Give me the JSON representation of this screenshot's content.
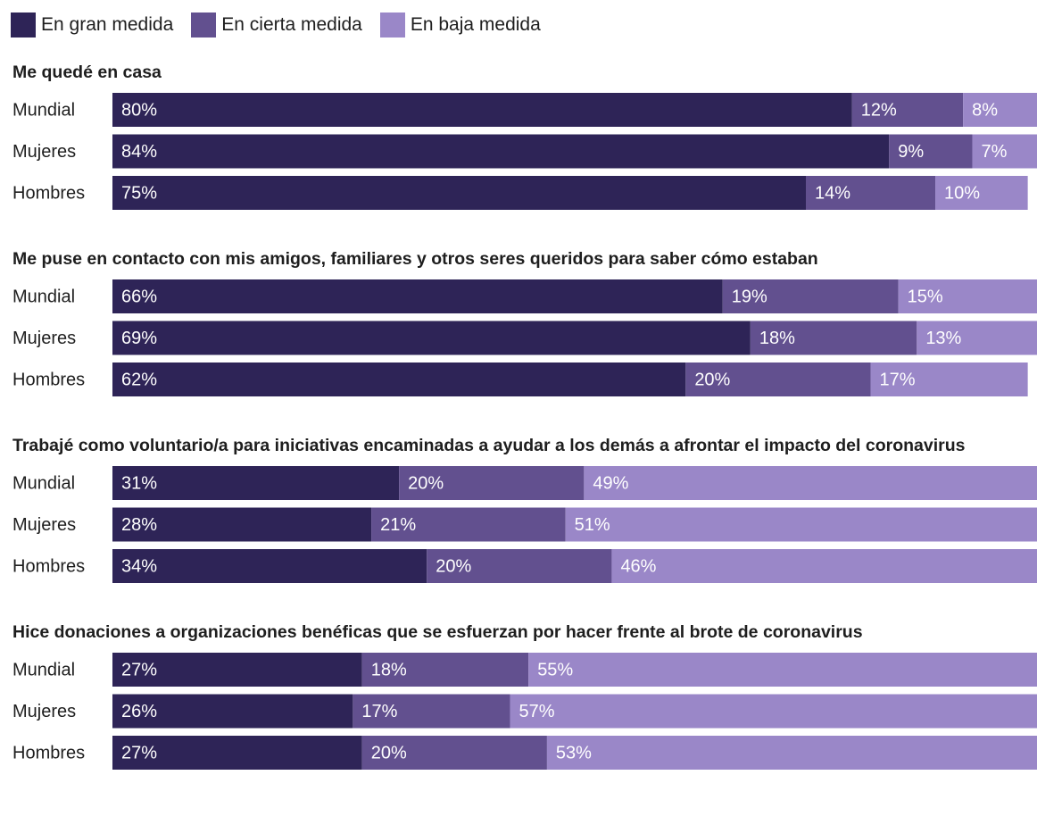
{
  "chart_data": [
    {
      "type": "stacked-bar",
      "title": "Me quedé en casa",
      "categories": [
        "Mundial",
        "Mujeres",
        "Hombres"
      ],
      "xlim": [
        0,
        100
      ],
      "series": [
        {
          "name": "En gran medida",
          "color": "#2e2457",
          "values": [
            80,
            84,
            75
          ],
          "value_labels": [
            "80%",
            "84%",
            "75%"
          ]
        },
        {
          "name": "En cierta medida",
          "color": "#62508f",
          "values": [
            12,
            9,
            14
          ],
          "value_labels": [
            "12%",
            "9%",
            "14%"
          ]
        },
        {
          "name": "En baja medida",
          "color": "#9a87c8",
          "values": [
            8,
            7,
            10
          ],
          "value_labels": [
            "8%",
            "7%",
            "10%"
          ]
        }
      ]
    },
    {
      "type": "stacked-bar",
      "title": "Me puse en contacto con mis amigos, familiares y otros seres queridos para saber cómo estaban",
      "categories": [
        "Mundial",
        "Mujeres",
        "Hombres"
      ],
      "xlim": [
        0,
        100
      ],
      "series": [
        {
          "name": "En gran medida",
          "color": "#2e2457",
          "values": [
            66,
            69,
            62
          ],
          "value_labels": [
            "66%",
            "69%",
            "62%"
          ]
        },
        {
          "name": "En cierta medida",
          "color": "#62508f",
          "values": [
            19,
            18,
            20
          ],
          "value_labels": [
            "19%",
            "18%",
            "20%"
          ]
        },
        {
          "name": "En baja medida",
          "color": "#9a87c8",
          "values": [
            15,
            13,
            17
          ],
          "value_labels": [
            "15%",
            "13%",
            "17%"
          ]
        }
      ]
    },
    {
      "type": "stacked-bar",
      "title": "Trabajé como voluntario/a para iniciativas encaminadas a ayudar a los demás a afrontar el impacto del coronavirus",
      "categories": [
        "Mundial",
        "Mujeres",
        "Hombres"
      ],
      "xlim": [
        0,
        100
      ],
      "series": [
        {
          "name": "En gran medida",
          "color": "#2e2457",
          "values": [
            31,
            28,
            34
          ],
          "value_labels": [
            "31%",
            "28%",
            "34%"
          ]
        },
        {
          "name": "En cierta medida",
          "color": "#62508f",
          "values": [
            20,
            21,
            20
          ],
          "value_labels": [
            "20%",
            "21%",
            "20%"
          ]
        },
        {
          "name": "En baja medida",
          "color": "#9a87c8",
          "values": [
            49,
            51,
            46
          ],
          "value_labels": [
            "49%",
            "51%",
            "46%"
          ]
        }
      ]
    },
    {
      "type": "stacked-bar",
      "title": "Hice donaciones a organizaciones benéficas que se esfuerzan por hacer frente al brote de coronavirus",
      "categories": [
        "Mundial",
        "Mujeres",
        "Hombres"
      ],
      "xlim": [
        0,
        100
      ],
      "series": [
        {
          "name": "En gran medida",
          "color": "#2e2457",
          "values": [
            27,
            26,
            27
          ],
          "value_labels": [
            "27%",
            "26%",
            "27%"
          ]
        },
        {
          "name": "En cierta medida",
          "color": "#62508f",
          "values": [
            18,
            17,
            20
          ],
          "value_labels": [
            "18%",
            "17%",
            "20%"
          ]
        },
        {
          "name": "En baja medida",
          "color": "#9a87c8",
          "values": [
            55,
            57,
            53
          ],
          "value_labels": [
            "55%",
            "57%",
            "53%"
          ]
        }
      ]
    }
  ]
}
